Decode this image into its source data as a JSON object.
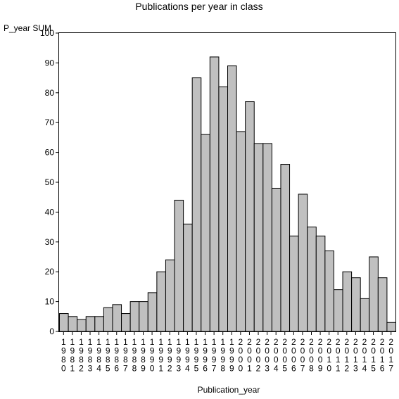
{
  "chart_data": {
    "type": "bar",
    "title": "Publications per year in class",
    "ylabel": "P_year SUM",
    "xlabel": "Publication_year",
    "ylim": [
      0,
      100
    ],
    "yticks": [
      0,
      10,
      20,
      30,
      40,
      50,
      60,
      70,
      80,
      90,
      100
    ],
    "grid": false,
    "categories": [
      "1980",
      "1981",
      "1982",
      "1983",
      "1984",
      "1985",
      "1986",
      "1987",
      "1988",
      "1989",
      "1990",
      "1991",
      "1992",
      "1993",
      "1994",
      "1995",
      "1996",
      "1997",
      "1998",
      "1999",
      "2000",
      "2001",
      "2002",
      "2003",
      "2004",
      "2005",
      "2006",
      "2007",
      "2008",
      "2009",
      "2010",
      "2011",
      "2012",
      "2013",
      "2014",
      "2015",
      "2016",
      "2017"
    ],
    "values": [
      6,
      5,
      4,
      5,
      5,
      8,
      9,
      6,
      10,
      10,
      13,
      20,
      24,
      44,
      36,
      85,
      66,
      92,
      82,
      89,
      67,
      77,
      63,
      63,
      48,
      56,
      32,
      46,
      35,
      32,
      27,
      14,
      20,
      18,
      11,
      25,
      18,
      3
    ],
    "bar_color": "#c0c0c0",
    "edge_color": "#000000"
  }
}
